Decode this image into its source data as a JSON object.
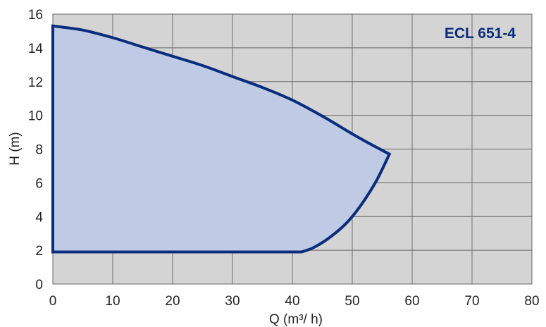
{
  "chart_data": {
    "type": "area",
    "model_label": "ECL 651-4",
    "xlabel": "Q (m³/ h)",
    "ylabel": "H (m)",
    "xlim": [
      0,
      80
    ],
    "ylim": [
      0,
      16
    ],
    "x_ticks": [
      0,
      10,
      20,
      30,
      40,
      50,
      60,
      70,
      80
    ],
    "y_ticks": [
      0,
      2,
      4,
      6,
      8,
      10,
      12,
      14,
      16
    ],
    "grid": true,
    "colors": {
      "plot_background": "#d4d4d4",
      "grid": "#666666",
      "region_fill": "#bfcbe4",
      "curve": "#0a2c7c",
      "label": "#0a2c7c"
    },
    "operating_region": {
      "upper_curve": [
        {
          "x": 0,
          "y": 15.3
        },
        {
          "x": 5,
          "y": 15.05
        },
        {
          "x": 10,
          "y": 14.6
        },
        {
          "x": 15,
          "y": 14.05
        },
        {
          "x": 20,
          "y": 13.5
        },
        {
          "x": 25,
          "y": 12.95
        },
        {
          "x": 30,
          "y": 12.3
        },
        {
          "x": 35,
          "y": 11.65
        },
        {
          "x": 40,
          "y": 10.9
        },
        {
          "x": 45,
          "y": 9.95
        },
        {
          "x": 50,
          "y": 8.9
        },
        {
          "x": 53,
          "y": 8.3
        },
        {
          "x": 56.2,
          "y": 7.7
        }
      ],
      "right_curve": [
        {
          "x": 56.2,
          "y": 7.7
        },
        {
          "x": 54,
          "y": 6.1
        },
        {
          "x": 51.5,
          "y": 4.7
        },
        {
          "x": 49,
          "y": 3.6
        },
        {
          "x": 46,
          "y": 2.7
        },
        {
          "x": 43.5,
          "y": 2.15
        },
        {
          "x": 41.5,
          "y": 1.9
        }
      ],
      "min_head": 1.9,
      "min_flow": 0
    }
  }
}
